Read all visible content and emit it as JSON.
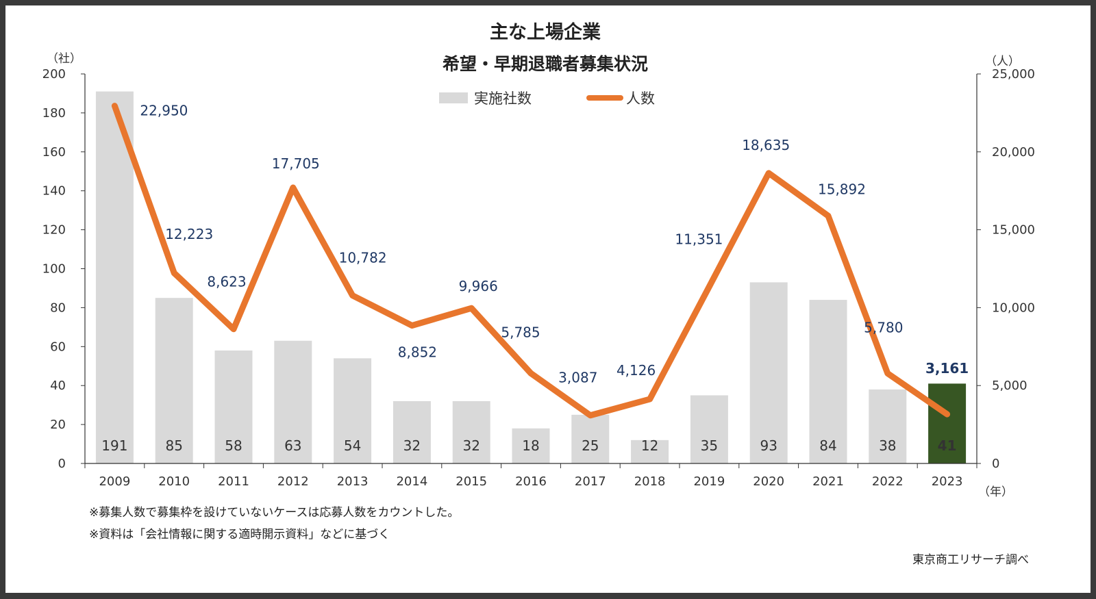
{
  "chart_data": {
    "type": "bar+line",
    "title_line1": "主な上場企業",
    "title_line2": "希望・早期退職者募集状況",
    "categories": [
      "2009",
      "2010",
      "2011",
      "2012",
      "2013",
      "2014",
      "2015",
      "2016",
      "2017",
      "2018",
      "2019",
      "2020",
      "2021",
      "2022",
      "2023"
    ],
    "series": [
      {
        "name": "実施社数",
        "type": "bar",
        "axis": "left",
        "values": [
          191,
          85,
          58,
          63,
          54,
          32,
          32,
          18,
          25,
          12,
          35,
          93,
          84,
          38,
          41
        ]
      },
      {
        "name": "人数",
        "type": "line",
        "axis": "right",
        "values": [
          22950,
          12223,
          8623,
          17705,
          10782,
          8852,
          9966,
          5785,
          3087,
          4126,
          11351,
          18635,
          15892,
          5780,
          3161
        ]
      }
    ],
    "left_axis": {
      "unit": "（社）",
      "ylim": [
        0,
        200
      ],
      "ticks": [
        "0",
        "20",
        "40",
        "60",
        "80",
        "100",
        "120",
        "140",
        "160",
        "180",
        "200"
      ]
    },
    "right_axis": {
      "unit": "（人）",
      "ylim": [
        0,
        25000
      ],
      "ticks": [
        "0",
        "5,000",
        "10,000",
        "15,000",
        "20,000",
        "25,000"
      ]
    },
    "x_unit": "（年）",
    "bar_labels": [
      "191",
      "85",
      "58",
      "63",
      "54",
      "32",
      "32",
      "18",
      "25",
      "12",
      "35",
      "93",
      "84",
      "38",
      "41"
    ],
    "line_labels": [
      "22,950",
      "12,223",
      "8,623",
      "17,705",
      "10,782",
      "8,852",
      "9,966",
      "5,785",
      "3,087",
      "4,126",
      "11,351",
      "18,635",
      "15,892",
      "5,780",
      "3,161"
    ],
    "highlight_index": 14,
    "colors": {
      "bar": "#d9d9d9",
      "bar_highlight": "#375623",
      "line": "#e8762d",
      "label": "#1f3864"
    },
    "legend_position": "top-center",
    "grid": false
  },
  "notes": [
    "※募集人数で募集枠を設けていないケースは応募人数をカウントした。",
    "※資料は「会社情報に関する適時開示資料」などに基づく"
  ],
  "source": "東京商工リサーチ調べ"
}
